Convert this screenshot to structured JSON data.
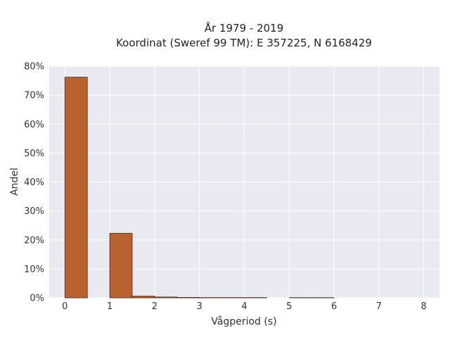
{
  "chart_data": {
    "type": "bar",
    "title_line1": "År 1979 - 2019",
    "title_line2": "Koordinat (Sweref 99 TM): E 357225, N 6168429",
    "xlabel": "Vågperiod (s)",
    "ylabel": "Andel",
    "xlim": [
      -0.35,
      8.35
    ],
    "ylim": [
      0,
      0.8
    ],
    "x_ticks": [
      0,
      1,
      2,
      3,
      4,
      5,
      6,
      7,
      8
    ],
    "y_ticks": [
      0,
      0.1,
      0.2,
      0.3,
      0.4,
      0.5,
      0.6,
      0.7,
      0.8
    ],
    "y_tick_labels": [
      "0%",
      "10%",
      "20%",
      "30%",
      "40%",
      "50%",
      "60%",
      "70%",
      "80%"
    ],
    "bin_width": 0.5,
    "bins": [
      {
        "start": 0.0,
        "value": 0.762
      },
      {
        "start": 1.0,
        "value": 0.223
      },
      {
        "start": 1.5,
        "value": 0.006
      },
      {
        "start": 2.0,
        "value": 0.003
      },
      {
        "start": 2.5,
        "value": 0.0015
      },
      {
        "start": 3.0,
        "value": 0.001
      },
      {
        "start": 3.5,
        "value": 0.001
      },
      {
        "start": 4.0,
        "value": 0.001
      },
      {
        "start": 5.0,
        "value": 0.0008
      },
      {
        "start": 5.5,
        "value": 0.0008
      }
    ],
    "grid": true,
    "colors": {
      "bar_fill": "#b8622e",
      "bar_stroke": "#4a2a18",
      "plot_bg": "#e9e9f1",
      "grid": "#ffffff"
    }
  }
}
